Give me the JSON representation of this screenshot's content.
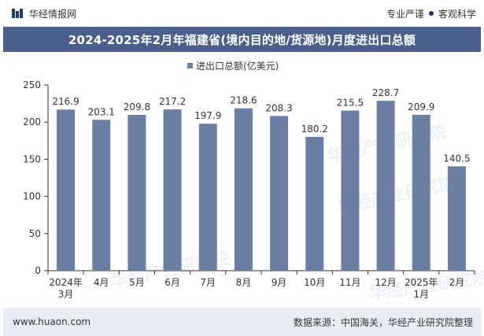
{
  "header": {
    "brand_name": "华经情报网",
    "slogan_left": "专业严谨",
    "slogan_right": "客观科学"
  },
  "title": "2024-2025年2月年福建省(境内目的地/货源地)月度进出口总额",
  "watermark": "华经产业研究院",
  "footer": {
    "website": "www.huaon.com",
    "source": "数据来源：中国海关，华经产业研究院整理"
  },
  "colors": {
    "bar": "#6b7ea3",
    "title_bg": "#4a5f8c",
    "footer_bg": "#e8edf5"
  },
  "chart_data": {
    "type": "bar",
    "categories": [
      "2024年\n3月",
      "4月",
      "5月",
      "6月",
      "7月",
      "8月",
      "9月",
      "10月",
      "11月",
      "12月",
      "2025年\n1月",
      "2月"
    ],
    "series": [
      {
        "name": "进出口总额(亿美元)",
        "values": [
          216.9,
          203.1,
          209.8,
          217.2,
          197.9,
          218.6,
          208.3,
          180.2,
          215.5,
          228.7,
          209.9,
          140.5
        ]
      }
    ],
    "yticks": [
      0,
      50,
      100,
      150,
      200,
      250
    ],
    "ylim": [
      0,
      250
    ],
    "legend_position": "top-center",
    "grid": false
  }
}
